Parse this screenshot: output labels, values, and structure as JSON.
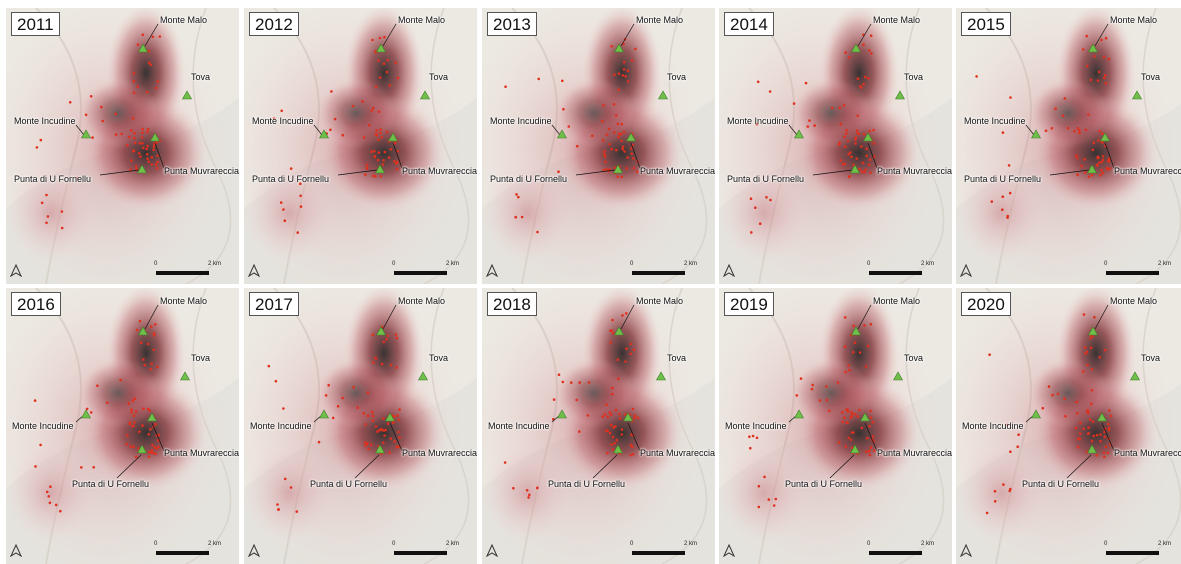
{
  "panels": [
    {
      "year": "2011"
    },
    {
      "year": "2012"
    },
    {
      "year": "2013"
    },
    {
      "year": "2014"
    },
    {
      "year": "2015"
    },
    {
      "year": "2016"
    },
    {
      "year": "2017"
    },
    {
      "year": "2018"
    },
    {
      "year": "2019"
    },
    {
      "year": "2020"
    }
  ],
  "places": {
    "monte_malo": "Monte Malo",
    "tova": "Tova",
    "monte_incudine": "Monte Incudine",
    "punta_muvrareccia": "Punta Muvrareccia",
    "punta_di_u_fornellu": "Punta di U Fornellu"
  },
  "scale_bar": {
    "start": "0",
    "end": "2 km"
  },
  "colors": {
    "summit_marker": "#6fbf4a",
    "observation_point": "#e0301e",
    "density_low": "#f2c9cc",
    "density_high": "#2e2a2a",
    "background": "#ece9e2"
  },
  "icons": {
    "summit": "triangle-icon",
    "north": "north-arrow-icon"
  }
}
